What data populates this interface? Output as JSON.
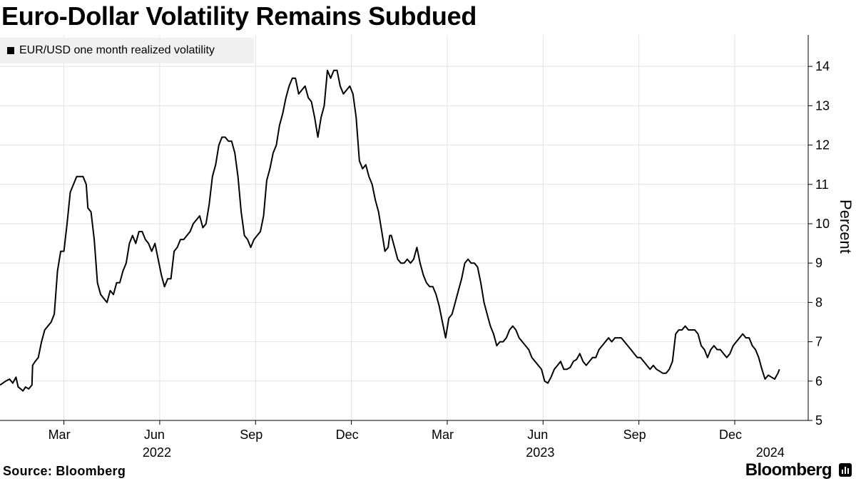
{
  "header": {
    "title": "Euro-Dollar Volatility Remains Subdued"
  },
  "footer": {
    "source": "Source: Bloomberg",
    "brand": "Bloomberg"
  },
  "chart_data": {
    "type": "line",
    "title": "Euro-Dollar Volatility Remains Subdued",
    "xlabel": "",
    "ylabel": "Percent",
    "ylim": [
      5,
      14.8
    ],
    "yticks": [
      5,
      6,
      7,
      8,
      9,
      10,
      11,
      12,
      13,
      14
    ],
    "xlim": [
      0,
      25.3
    ],
    "xticks": [
      {
        "x": 2,
        "label": "Mar"
      },
      {
        "x": 5,
        "label": "Jun"
      },
      {
        "x": 8,
        "label": "Sep"
      },
      {
        "x": 11,
        "label": "Dec"
      },
      {
        "x": 14,
        "label": "Mar"
      },
      {
        "x": 17,
        "label": "Jun"
      },
      {
        "x": 20,
        "label": "Sep"
      },
      {
        "x": 23,
        "label": "Dec"
      }
    ],
    "year_labels": [
      {
        "x": 5,
        "label": "2022"
      },
      {
        "x": 17,
        "label": "2023"
      },
      {
        "x": 24.2,
        "label": "2024"
      }
    ],
    "grid": true,
    "legend": "top-left",
    "series": [
      {
        "name": "EUR/USD one month realized volatility",
        "color": "#000000",
        "points": [
          [
            0.0,
            5.9
          ],
          [
            0.18,
            6.0
          ],
          [
            0.3,
            6.05
          ],
          [
            0.4,
            5.95
          ],
          [
            0.5,
            6.1
          ],
          [
            0.57,
            5.85
          ],
          [
            0.65,
            5.8
          ],
          [
            0.72,
            5.75
          ],
          [
            0.8,
            5.85
          ],
          [
            0.9,
            5.8
          ],
          [
            1.0,
            5.9
          ],
          [
            1.02,
            6.4
          ],
          [
            1.1,
            6.5
          ],
          [
            1.2,
            6.6
          ],
          [
            1.3,
            7.0
          ],
          [
            1.4,
            7.3
          ],
          [
            1.5,
            7.4
          ],
          [
            1.6,
            7.5
          ],
          [
            1.7,
            7.7
          ],
          [
            1.8,
            8.8
          ],
          [
            1.9,
            9.3
          ],
          [
            2.0,
            9.3
          ],
          [
            2.1,
            10.0
          ],
          [
            2.2,
            10.8
          ],
          [
            2.3,
            11.0
          ],
          [
            2.4,
            11.2
          ],
          [
            2.5,
            11.2
          ],
          [
            2.6,
            11.2
          ],
          [
            2.7,
            11.0
          ],
          [
            2.75,
            10.4
          ],
          [
            2.85,
            10.3
          ],
          [
            2.95,
            9.6
          ],
          [
            3.05,
            8.5
          ],
          [
            3.15,
            8.2
          ],
          [
            3.25,
            8.1
          ],
          [
            3.35,
            8.0
          ],
          [
            3.45,
            8.3
          ],
          [
            3.55,
            8.2
          ],
          [
            3.65,
            8.5
          ],
          [
            3.75,
            8.5
          ],
          [
            3.85,
            8.8
          ],
          [
            3.95,
            9.0
          ],
          [
            4.05,
            9.5
          ],
          [
            4.15,
            9.7
          ],
          [
            4.25,
            9.5
          ],
          [
            4.35,
            9.8
          ],
          [
            4.45,
            9.8
          ],
          [
            4.55,
            9.6
          ],
          [
            4.65,
            9.5
          ],
          [
            4.75,
            9.3
          ],
          [
            4.85,
            9.5
          ],
          [
            4.95,
            9.1
          ],
          [
            5.05,
            8.7
          ],
          [
            5.15,
            8.4
          ],
          [
            5.25,
            8.6
          ],
          [
            5.35,
            8.6
          ],
          [
            5.45,
            9.3
          ],
          [
            5.55,
            9.4
          ],
          [
            5.65,
            9.6
          ],
          [
            5.75,
            9.6
          ],
          [
            5.85,
            9.7
          ],
          [
            5.95,
            9.8
          ],
          [
            6.05,
            10.0
          ],
          [
            6.15,
            10.1
          ],
          [
            6.25,
            10.2
          ],
          [
            6.35,
            9.9
          ],
          [
            6.45,
            10.0
          ],
          [
            6.55,
            10.5
          ],
          [
            6.65,
            11.2
          ],
          [
            6.75,
            11.5
          ],
          [
            6.85,
            12.0
          ],
          [
            6.95,
            12.2
          ],
          [
            7.05,
            12.2
          ],
          [
            7.15,
            12.1
          ],
          [
            7.25,
            12.1
          ],
          [
            7.35,
            11.8
          ],
          [
            7.45,
            11.2
          ],
          [
            7.55,
            10.3
          ],
          [
            7.65,
            9.7
          ],
          [
            7.75,
            9.6
          ],
          [
            7.85,
            9.4
          ],
          [
            7.95,
            9.6
          ],
          [
            8.05,
            9.7
          ],
          [
            8.15,
            9.8
          ],
          [
            8.25,
            10.2
          ],
          [
            8.35,
            11.1
          ],
          [
            8.45,
            11.4
          ],
          [
            8.55,
            11.8
          ],
          [
            8.65,
            12.0
          ],
          [
            8.75,
            12.5
          ],
          [
            8.85,
            12.8
          ],
          [
            8.95,
            13.2
          ],
          [
            9.05,
            13.5
          ],
          [
            9.15,
            13.7
          ],
          [
            9.25,
            13.7
          ],
          [
            9.35,
            13.3
          ],
          [
            9.45,
            13.4
          ],
          [
            9.55,
            13.5
          ],
          [
            9.65,
            13.2
          ],
          [
            9.75,
            13.1
          ],
          [
            9.85,
            12.7
          ],
          [
            9.95,
            12.2
          ],
          [
            10.05,
            12.7
          ],
          [
            10.15,
            13.0
          ],
          [
            10.25,
            13.9
          ],
          [
            10.35,
            13.7
          ],
          [
            10.45,
            13.9
          ],
          [
            10.55,
            13.9
          ],
          [
            10.65,
            13.5
          ],
          [
            10.75,
            13.3
          ],
          [
            10.85,
            13.4
          ],
          [
            10.95,
            13.5
          ],
          [
            11.05,
            13.3
          ],
          [
            11.15,
            12.7
          ],
          [
            11.25,
            11.6
          ],
          [
            11.35,
            11.4
          ],
          [
            11.45,
            11.5
          ],
          [
            11.55,
            11.2
          ],
          [
            11.65,
            11.0
          ],
          [
            11.75,
            10.6
          ],
          [
            11.85,
            10.3
          ],
          [
            11.95,
            9.8
          ],
          [
            12.05,
            9.3
          ],
          [
            12.15,
            9.4
          ],
          [
            12.2,
            9.7
          ],
          [
            12.25,
            9.7
          ],
          [
            12.35,
            9.4
          ],
          [
            12.45,
            9.1
          ],
          [
            12.55,
            9.0
          ],
          [
            12.65,
            9.0
          ],
          [
            12.75,
            9.1
          ],
          [
            12.85,
            9.0
          ],
          [
            12.95,
            9.1
          ],
          [
            13.05,
            9.4
          ],
          [
            13.15,
            9.0
          ],
          [
            13.25,
            8.7
          ],
          [
            13.35,
            8.5
          ],
          [
            13.45,
            8.4
          ],
          [
            13.55,
            8.4
          ],
          [
            13.65,
            8.2
          ],
          [
            13.75,
            7.9
          ],
          [
            13.85,
            7.5
          ],
          [
            13.95,
            7.1
          ],
          [
            14.05,
            7.6
          ],
          [
            14.15,
            7.7
          ],
          [
            14.25,
            8.0
          ],
          [
            14.35,
            8.3
          ],
          [
            14.45,
            8.6
          ],
          [
            14.55,
            9.0
          ],
          [
            14.65,
            9.1
          ],
          [
            14.75,
            9.0
          ],
          [
            14.85,
            9.0
          ],
          [
            14.95,
            8.9
          ],
          [
            15.05,
            8.5
          ],
          [
            15.15,
            8.0
          ],
          [
            15.25,
            7.7
          ],
          [
            15.35,
            7.4
          ],
          [
            15.45,
            7.2
          ],
          [
            15.55,
            6.9
          ],
          [
            15.65,
            7.0
          ],
          [
            15.75,
            7.0
          ],
          [
            15.85,
            7.1
          ],
          [
            15.95,
            7.3
          ],
          [
            16.05,
            7.4
          ],
          [
            16.15,
            7.3
          ],
          [
            16.25,
            7.1
          ],
          [
            16.35,
            7.0
          ],
          [
            16.45,
            6.9
          ],
          [
            16.55,
            6.8
          ],
          [
            16.65,
            6.6
          ],
          [
            16.75,
            6.5
          ],
          [
            16.85,
            6.4
          ],
          [
            16.95,
            6.3
          ],
          [
            17.05,
            6.0
          ],
          [
            17.15,
            5.95
          ],
          [
            17.25,
            6.1
          ],
          [
            17.35,
            6.3
          ],
          [
            17.45,
            6.4
          ],
          [
            17.55,
            6.5
          ],
          [
            17.65,
            6.3
          ],
          [
            17.75,
            6.3
          ],
          [
            17.85,
            6.35
          ],
          [
            17.95,
            6.5
          ],
          [
            18.05,
            6.55
          ],
          [
            18.15,
            6.7
          ],
          [
            18.25,
            6.5
          ],
          [
            18.35,
            6.4
          ],
          [
            18.45,
            6.5
          ],
          [
            18.55,
            6.6
          ],
          [
            18.65,
            6.6
          ],
          [
            18.75,
            6.8
          ],
          [
            18.85,
            6.9
          ],
          [
            18.95,
            7.0
          ],
          [
            19.05,
            7.1
          ],
          [
            19.15,
            7.0
          ],
          [
            19.25,
            7.1
          ],
          [
            19.35,
            7.1
          ],
          [
            19.45,
            7.1
          ],
          [
            19.55,
            7.0
          ],
          [
            19.65,
            6.9
          ],
          [
            19.75,
            6.8
          ],
          [
            19.85,
            6.7
          ],
          [
            19.95,
            6.6
          ],
          [
            20.05,
            6.6
          ],
          [
            20.15,
            6.5
          ],
          [
            20.25,
            6.4
          ],
          [
            20.35,
            6.3
          ],
          [
            20.45,
            6.4
          ],
          [
            20.55,
            6.3
          ],
          [
            20.65,
            6.25
          ],
          [
            20.75,
            6.2
          ],
          [
            20.85,
            6.2
          ],
          [
            20.95,
            6.3
          ],
          [
            21.05,
            6.5
          ],
          [
            21.15,
            7.2
          ],
          [
            21.25,
            7.3
          ],
          [
            21.35,
            7.3
          ],
          [
            21.45,
            7.4
          ],
          [
            21.55,
            7.3
          ],
          [
            21.65,
            7.3
          ],
          [
            21.75,
            7.3
          ],
          [
            21.85,
            7.2
          ],
          [
            21.95,
            6.9
          ],
          [
            22.05,
            6.8
          ],
          [
            22.15,
            6.6
          ],
          [
            22.25,
            6.8
          ],
          [
            22.35,
            6.9
          ],
          [
            22.45,
            6.8
          ],
          [
            22.55,
            6.8
          ],
          [
            22.65,
            6.7
          ],
          [
            22.75,
            6.6
          ],
          [
            22.85,
            6.7
          ],
          [
            22.95,
            6.9
          ],
          [
            23.05,
            7.0
          ],
          [
            23.15,
            7.1
          ],
          [
            23.25,
            7.2
          ],
          [
            23.35,
            7.1
          ],
          [
            23.45,
            7.1
          ],
          [
            23.55,
            6.9
          ],
          [
            23.65,
            6.8
          ],
          [
            23.75,
            6.6
          ],
          [
            23.85,
            6.3
          ],
          [
            23.95,
            6.05
          ],
          [
            24.05,
            6.15
          ],
          [
            24.15,
            6.1
          ],
          [
            24.25,
            6.05
          ],
          [
            24.35,
            6.2
          ],
          [
            24.4,
            6.3
          ]
        ]
      }
    ]
  }
}
